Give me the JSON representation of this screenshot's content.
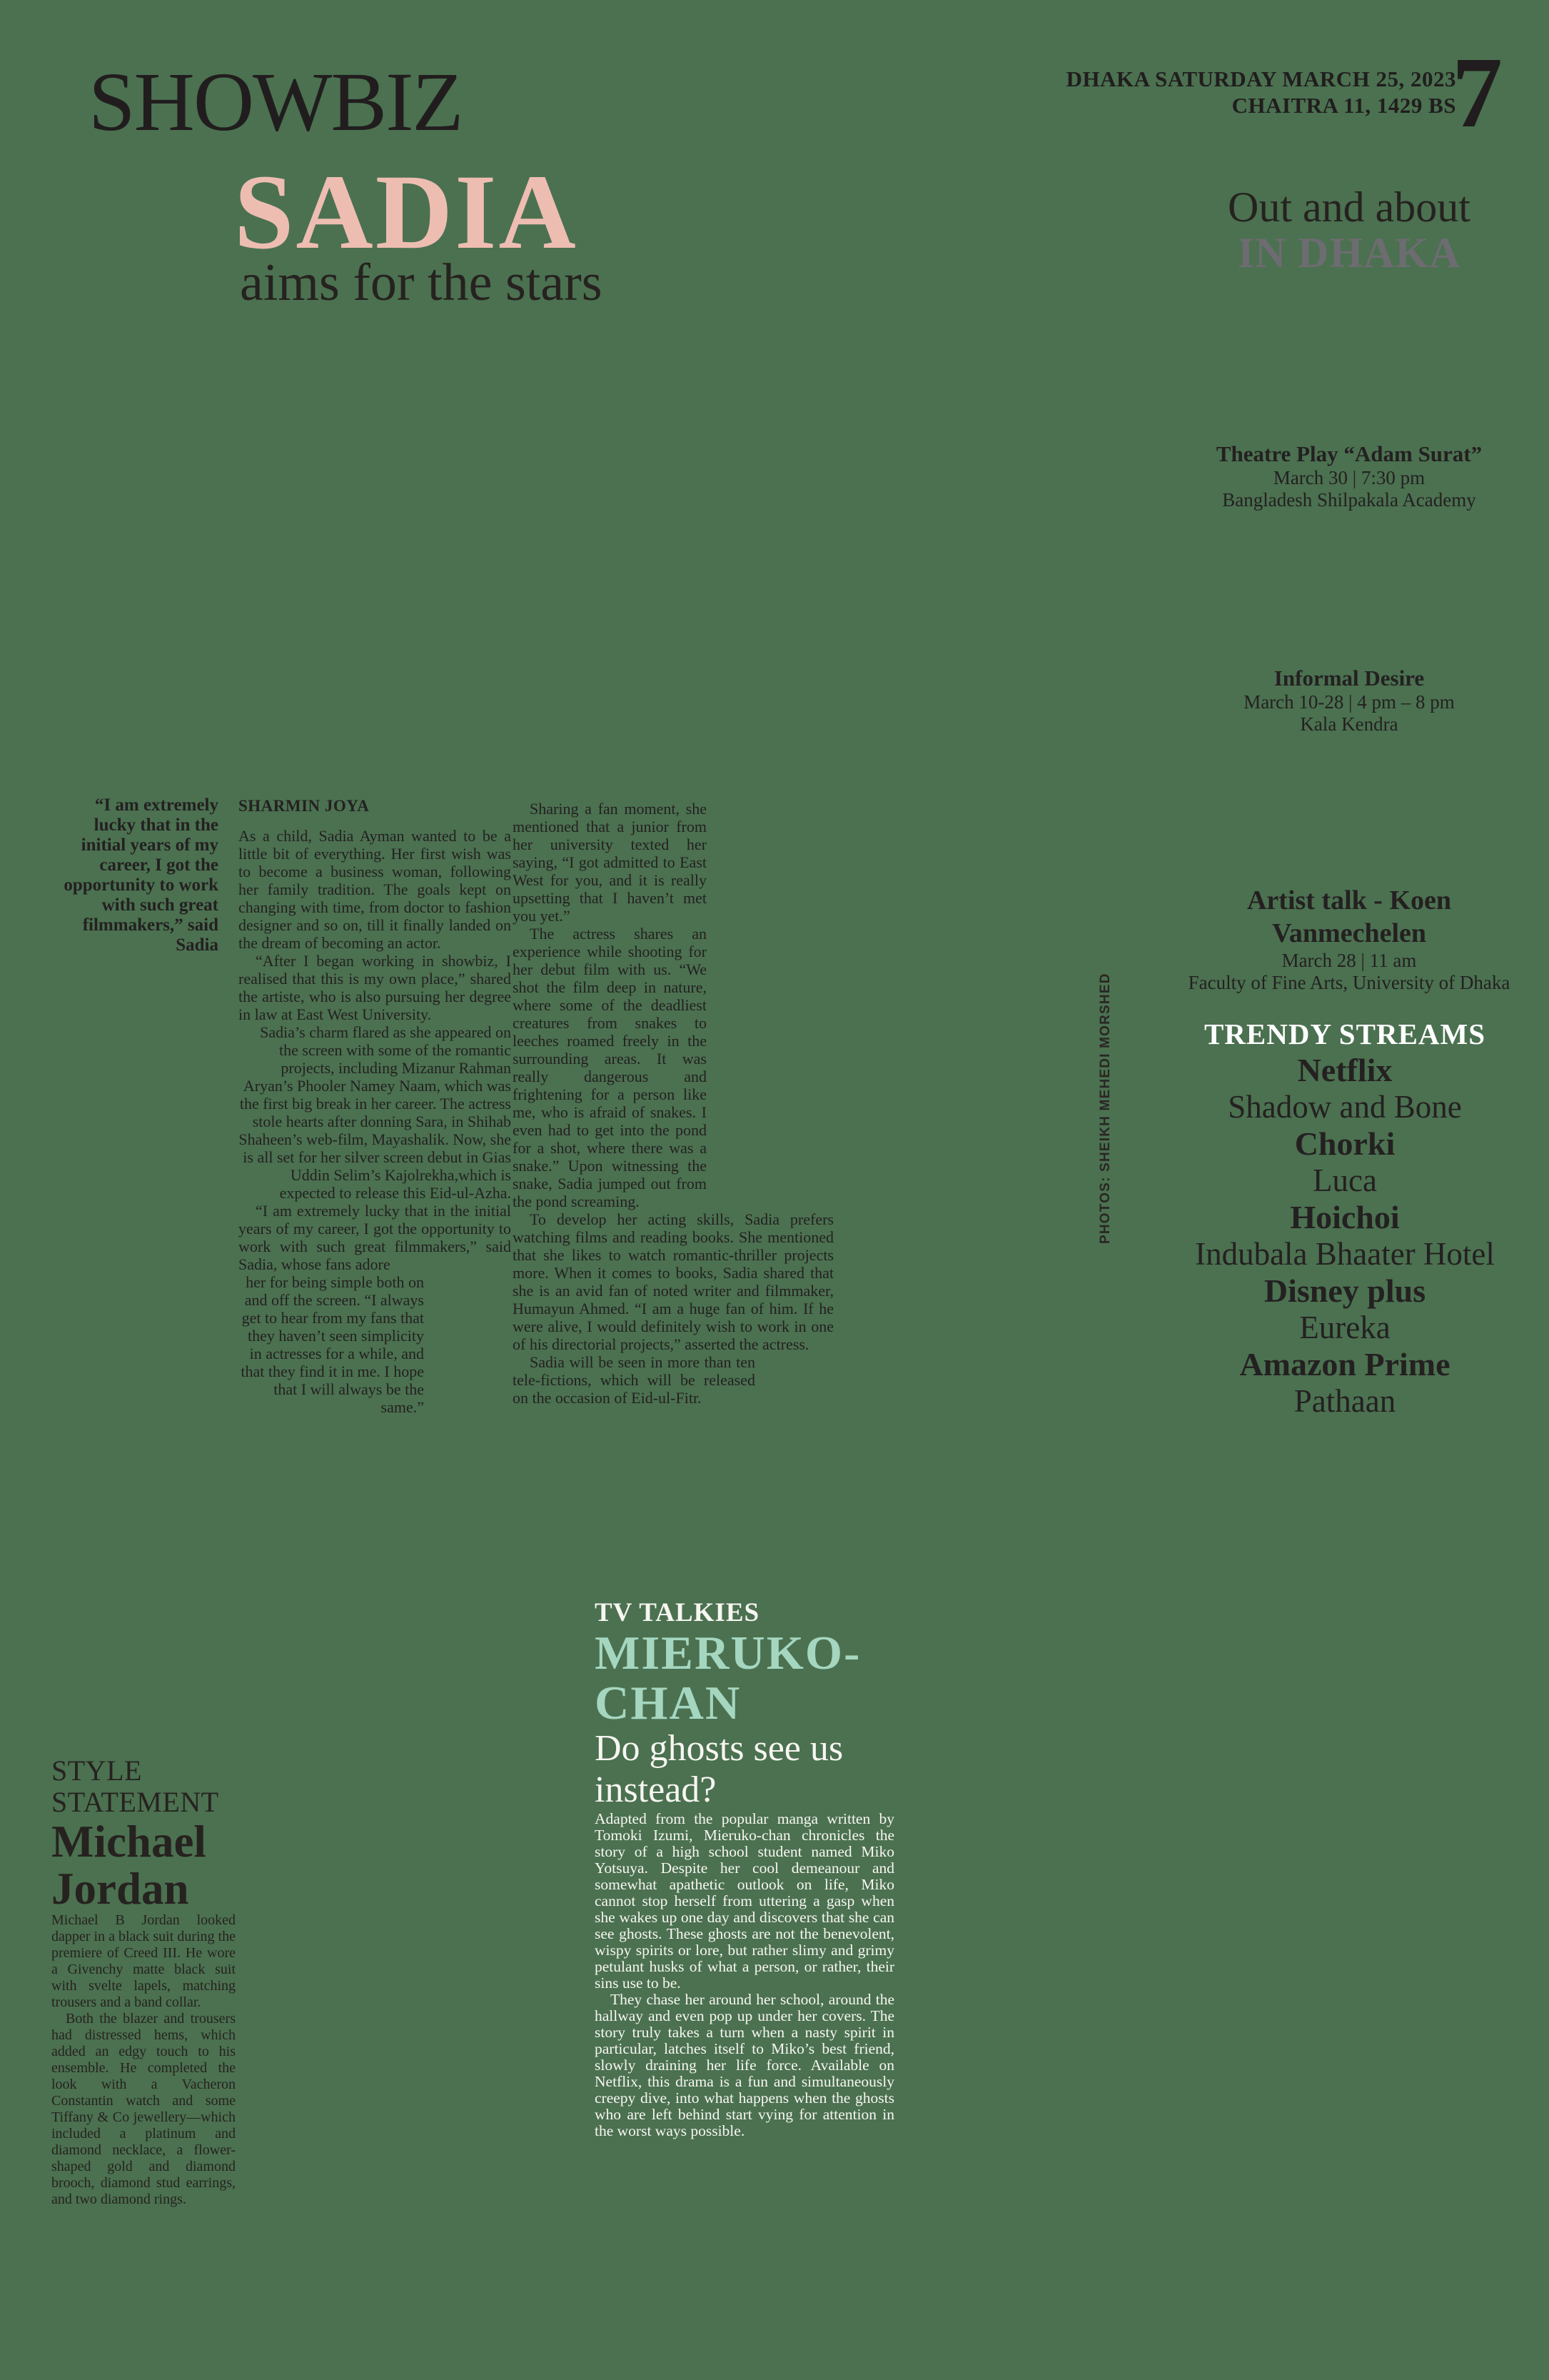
{
  "masthead": {
    "section": "SHOWBIZ",
    "date_line1": "DHAKA SATURDAY MARCH 25, 2023",
    "date_line2": "CHAITRA 11, 1429 BS",
    "page_number": "7"
  },
  "lead": {
    "headline": "SADIA",
    "subhead": "aims for the stars",
    "byline": "SHARMIN JOYA",
    "pull_quote": "“I am extremely lucky that in the initial years of my career, I got the opportunity to work with such great filmmakers,” said Sadia",
    "photo_credit": "PHOTOS: SHEIKH MEHEDI MORSHED",
    "col1": {
      "p1": "As a child, Sadia Ayman wanted to be a little bit of everything. Her first wish was to become a business woman, following her family tradition. The goals kept on changing with time, from doctor to fashion designer and so on, till it finally landed on the dream of becoming an actor.",
      "p2": "“After I began working in showbiz, I realised that this is my own place,” shared the artiste, who is also pursuing her degree in law at East West University.",
      "p3": "Sadia’s charm flared as she appeared on the screen with some of the romantic projects, including Mizanur Rahman Aryan’s Phooler Namey Naam, which was the first big break in her career. The actress stole hearts after donning Sara, in Shihab Shaheen’s web-film, Mayashalik. Now, she is all set for her silver screen debut in Gias Uddin Selim’s Kajolrekha,which is expected to release this Eid-ul-Azha.",
      "p4": "“I am extremely lucky that in the initial years of my career, I got the opportunity to work with such great filmmakers,” said Sadia, whose fans adore",
      "p5": "her for being simple both on and off the screen. “I always get to hear from my fans that they haven’t seen simplicity in actresses for a while, and that they find it in me. I hope that I will always be the same.”"
    },
    "col2": {
      "p1": "Sharing a fan moment, she mentioned that a junior from her university texted her saying, “I got admitted to East West for you, and it is really upsetting that I haven’t met you yet.”",
      "p2": "The actress shares an experience while shooting for her debut film with us. “We shot the film deep in nature, where some of the deadliest creatures from snakes to leeches roamed freely in the surrounding areas. It was really dangerous and frightening for a person like me, who is afraid of snakes. I even had to get into the pond for a shot, where there was a snake.” Upon witnessing the snake, Sadia jumped out from the pond screaming.",
      "p3": "To develop her acting skills, Sadia prefers watching films and reading books. She mentioned that she likes to watch romantic-thriller projects more. When it comes to books, Sadia shared that she is an avid fan of noted writer and filmmaker, Humayun Ahmed. “I am a huge fan of him. If he were alive, I would definitely wish to work in one of his directorial projects,” asserted the actress.",
      "p4": "Sadia will be seen in more than ten tele-fictions, which will be released on the occasion of Eid-ul-Fitr."
    }
  },
  "out_and_about": {
    "title_line1": "Out and about",
    "title_line2": "IN DHAKA",
    "events": [
      {
        "name": "Theatre Play “Adam Surat”",
        "time": "March 30 | 7:30 pm",
        "venue": "Bangladesh Shilpakala Academy"
      },
      {
        "name": "Informal Desire",
        "time": "March 10-28 | 4 pm – 8 pm",
        "venue": "Kala Kendra"
      },
      {
        "name": "Artist talk - Koen Vanmechelen",
        "time": "March 28 | 11 am",
        "venue": "Faculty of Fine Arts, University of Dhaka"
      }
    ]
  },
  "trendy": {
    "title": "TRENDY STREAMS",
    "items": [
      {
        "platform": "Netflix",
        "title": "Shadow and Bone"
      },
      {
        "platform": "Chorki",
        "title": "Luca"
      },
      {
        "platform": "Hoichoi",
        "title": "Indubala Bhaater Hotel"
      },
      {
        "platform": "Disney plus",
        "title": "Eureka"
      },
      {
        "platform": "Amazon Prime",
        "title": "Pathaan"
      }
    ]
  },
  "tv": {
    "kicker": "TV TALKIES",
    "title_line1": "MIERUKO-",
    "title_line2": "CHAN",
    "subtitle": "Do ghosts see us instead?",
    "p1": "Adapted from the popular manga written by Tomoki Izumi, Mieruko-chan chronicles the story of a high school student named Miko Yotsuya. Despite her cool demeanour and somewhat apathetic outlook on life, Miko cannot stop herself from uttering a gasp when she wakes up one day and discovers that she can see ghosts. These ghosts are not the benevolent, wispy spirits or lore, but rather slimy and grimy petulant husks of what a person, or rather, their sins use to be.",
    "p2": "They chase her around her school, around the hallway and even pop up under her covers. The story truly takes a turn when a nasty spirit in particular, latches itself to Miko’s best friend, slowly draining her life force. Available on Netflix, this drama is a fun and simultaneously creepy dive, into what happens when the ghosts who are left behind start vying for attention in the worst ways possible."
  },
  "style_statement": {
    "kicker_line1": "STYLE",
    "kicker_line2": "STATEMENT",
    "first_name": "Michael",
    "last_name": "Jordan",
    "p1": "Michael B Jordan looked dapper in a black suit during the premiere of Creed III. He wore a Givenchy matte black suit with svelte lapels, matching trousers and a band collar.",
    "p2": "Both the blazer and trousers had distressed hems, which added an edgy touch to his ensemble. He completed the look with a Vacheron Constantin watch and some Tiffany & Co jewellery—which included a platinum and diamond necklace, a flower-shaped gold and diamond brooch, diamond stud earrings, and two diamond rings."
  },
  "colors": {
    "background": "#4b7150",
    "ink": "#242021",
    "headline_pink": "#eebdb2",
    "dhaka_gray": "#6d6c71",
    "mieruko_mint": "#a5d6c0",
    "paper_white": "#f7f6f1"
  }
}
